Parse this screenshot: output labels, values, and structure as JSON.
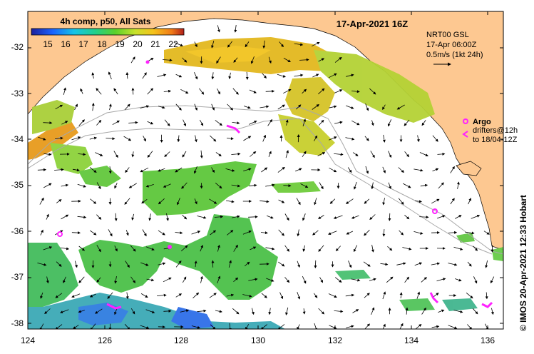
{
  "colorbar": {
    "title": "4h comp, p50, All Sats",
    "ticks": [
      "15",
      "16",
      "17",
      "18",
      "19",
      "20",
      "21",
      "22"
    ]
  },
  "header": {
    "date": "17-Apr-2021 16Z"
  },
  "current_info": {
    "line1": "NRT00 GSL",
    "line2": "17-Apr 06:00Z",
    "line3": "0.5m/s (1kt 24h)"
  },
  "legend": {
    "argo_label": "Argo",
    "drifter_line1": "drifters@12h",
    "drifter_line2": "to 18/04-12Z"
  },
  "axes": {
    "x_ticks": [
      "124",
      "126",
      "128",
      "130",
      "132",
      "134",
      "136"
    ],
    "y_ticks": [
      "-32",
      "-33",
      "-34",
      "-35",
      "-36",
      "-37",
      "-38"
    ]
  },
  "credit": {
    "text": "© IMOS 20-Apr-2021 12:33 Hobart"
  },
  "colors": {
    "land": "#fdc891",
    "frame": "#000000",
    "marker": "#ff22ff"
  }
}
